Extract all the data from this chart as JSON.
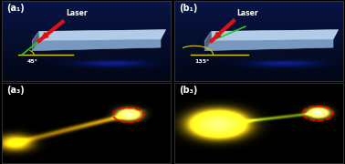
{
  "bg_color": "#000000",
  "label_a1": "(a₁)",
  "label_b1": "(b₁)",
  "label_a3": "(a₃)",
  "label_b3": "(b₃)",
  "laser_text": "Laser",
  "angle_a": "45°",
  "angle_b": "135°",
  "crystal_top": "#a8c8e8",
  "crystal_front": "#7090b8",
  "crystal_left": "#506888",
  "laser_color": "#dd1111",
  "green_line": "#22cc22",
  "yellow_line": "#ddcc00",
  "nav_dark": "#020510",
  "nav_mid": "#0a1535",
  "nav_bright": "#1525aa"
}
